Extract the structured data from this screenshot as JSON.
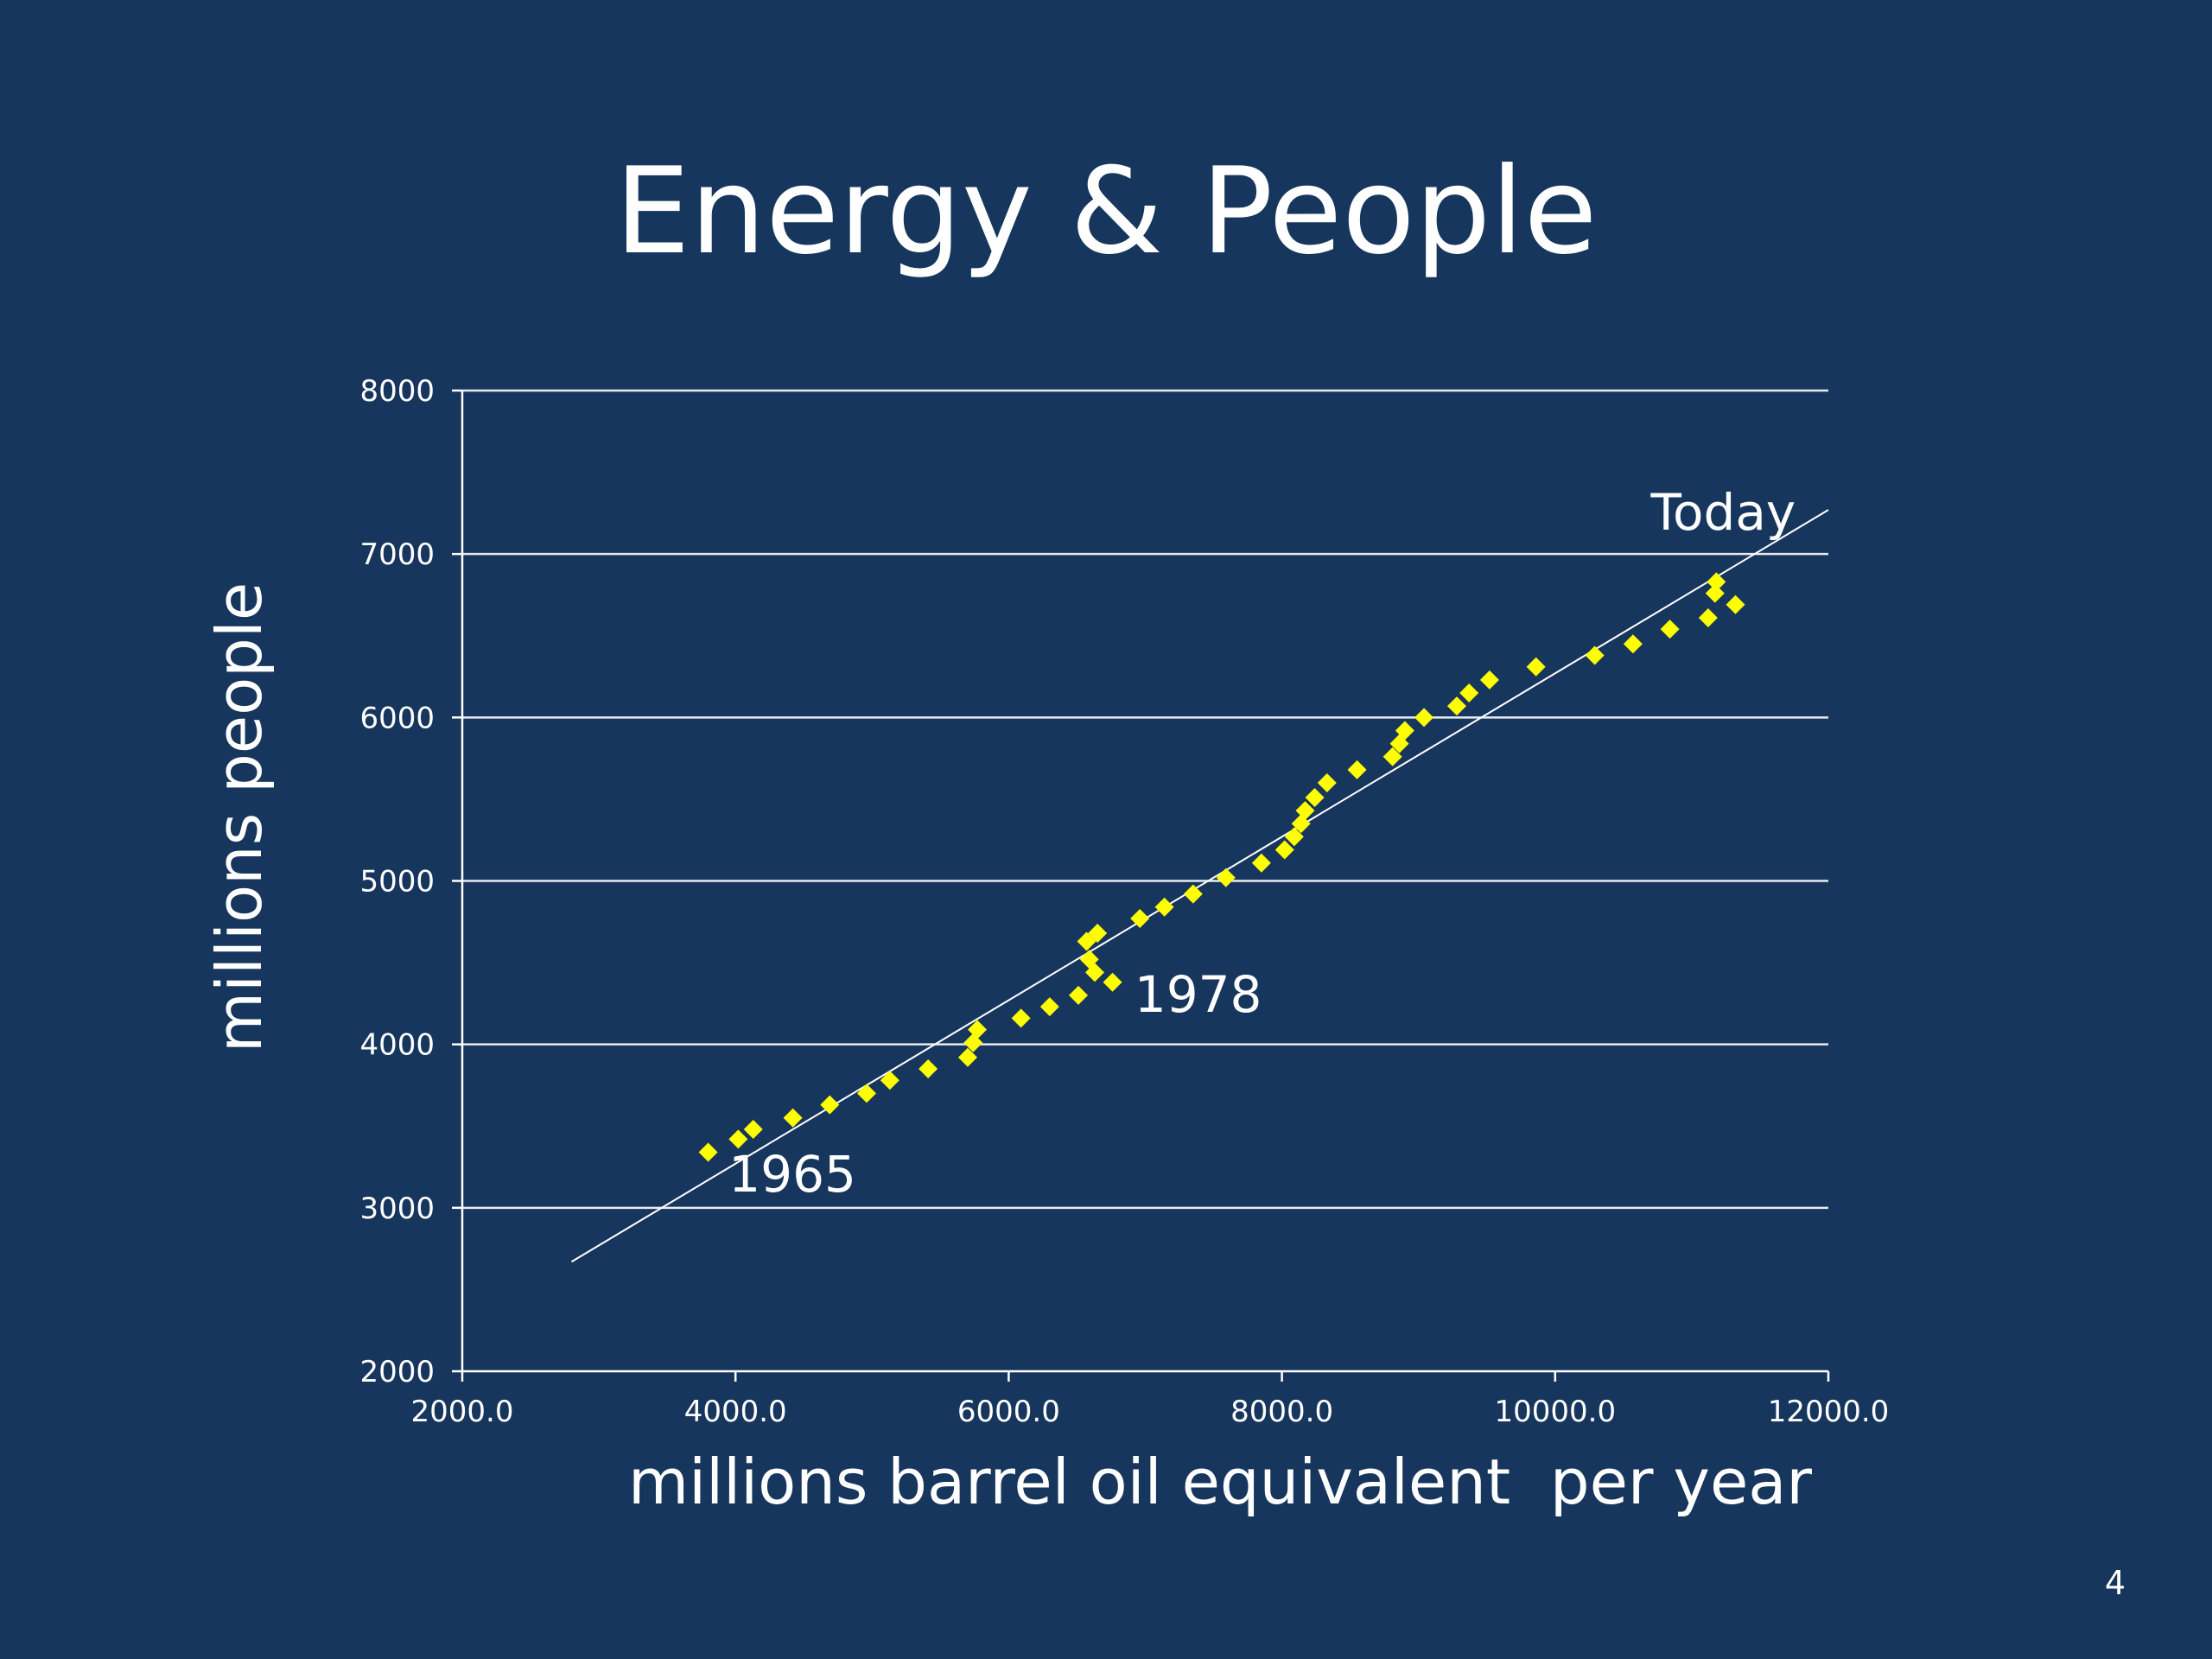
{
  "slide": {
    "title": "Energy & People",
    "page_number": "4"
  },
  "colors": {
    "background": "#17365d",
    "text": "#ffffff",
    "marker": "#ffff00",
    "grid": "#ffffff"
  },
  "chart_data": {
    "type": "scatter",
    "title": "",
    "xlabel": "millions barrel oil equivalent  per year",
    "ylabel": "millions people",
    "xlim": [
      2000,
      12000
    ],
    "ylim": [
      2000,
      8000
    ],
    "x_ticks": [
      2000,
      4000,
      6000,
      8000,
      10000,
      12000
    ],
    "x_tick_labels": [
      "2000.0",
      "4000.0",
      "6000.0",
      "8000.0",
      "10000.0",
      "12000.0"
    ],
    "y_ticks": [
      2000,
      3000,
      4000,
      5000,
      6000,
      7000,
      8000
    ],
    "y_tick_labels": [
      "2000",
      "3000",
      "4000",
      "5000",
      "6000",
      "7000",
      "8000"
    ],
    "grid": "horizontal",
    "legend": "none",
    "marker": "diamond",
    "series": [
      {
        "points": [
          [
            3800,
            3340
          ],
          [
            4020,
            3420
          ],
          [
            4130,
            3480
          ],
          [
            4420,
            3550
          ],
          [
            4690,
            3630
          ],
          [
            4960,
            3700
          ],
          [
            5130,
            3780
          ],
          [
            5410,
            3850
          ],
          [
            5700,
            3920
          ],
          [
            5740,
            4010
          ],
          [
            5770,
            4090
          ],
          [
            6090,
            4160
          ],
          [
            6300,
            4230
          ],
          [
            6510,
            4300
          ],
          [
            6570,
            4630
          ],
          [
            6590,
            4520
          ],
          [
            6630,
            4440
          ],
          [
            6650,
            4680
          ],
          [
            6760,
            4380
          ],
          [
            6960,
            4770
          ],
          [
            7140,
            4840
          ],
          [
            7350,
            4920
          ],
          [
            7590,
            5020
          ],
          [
            7850,
            5110
          ],
          [
            8020,
            5190
          ],
          [
            8090,
            5270
          ],
          [
            8140,
            5350
          ],
          [
            8170,
            5430
          ],
          [
            8240,
            5510
          ],
          [
            8330,
            5600
          ],
          [
            8550,
            5680
          ],
          [
            8810,
            5760
          ],
          [
            8860,
            5840
          ],
          [
            8900,
            5920
          ],
          [
            9040,
            6000
          ],
          [
            9280,
            6070
          ],
          [
            9370,
            6150
          ],
          [
            9520,
            6230
          ],
          [
            9860,
            6310
          ],
          [
            10290,
            6380
          ],
          [
            10570,
            6450
          ],
          [
            10840,
            6540
          ],
          [
            11120,
            6610
          ],
          [
            11170,
            6760
          ],
          [
            11180,
            6830
          ],
          [
            11320,
            6690
          ]
        ]
      }
    ],
    "trendline": {
      "from": [
        2800,
        2670
      ],
      "to": [
        12000,
        7270
      ]
    },
    "annotations": [
      {
        "text": "1965",
        "x": 3950,
        "y": 3100
      },
      {
        "text": "1978",
        "x": 6920,
        "y": 4200
      },
      {
        "text": "Today",
        "x": 10700,
        "y": 7150
      }
    ]
  }
}
